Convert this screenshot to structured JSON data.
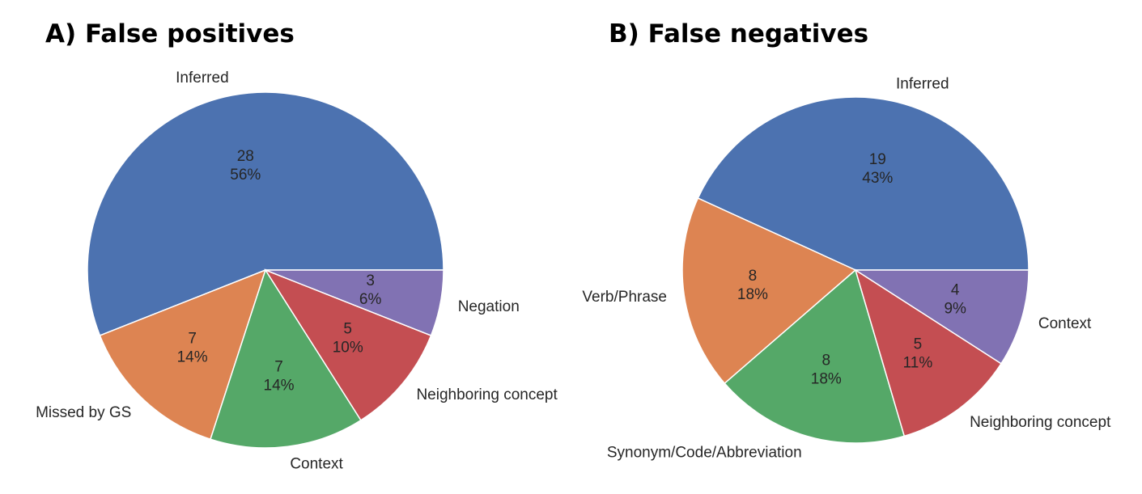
{
  "chart_data": [
    {
      "type": "pie",
      "title": "A) False positives",
      "slices": [
        {
          "label": "Inferred",
          "value": 28,
          "percent": "56%",
          "color": "#4c72b0"
        },
        {
          "label": "Missed by GS",
          "value": 7,
          "percent": "14%",
          "color": "#dd8452"
        },
        {
          "label": "Context",
          "value": 7,
          "percent": "14%",
          "color": "#55a868"
        },
        {
          "label": "Neighboring concept",
          "value": 5,
          "percent": "10%",
          "color": "#c44e52"
        },
        {
          "label": "Negation",
          "value": 3,
          "percent": "6%",
          "color": "#8172b3"
        }
      ]
    },
    {
      "type": "pie",
      "title": "B) False negatives",
      "slices": [
        {
          "label": "Inferred",
          "value": 19,
          "percent": "43%",
          "color": "#4c72b0"
        },
        {
          "label": "Verb/Phrase",
          "value": 8,
          "percent": "18%",
          "color": "#dd8452"
        },
        {
          "label": "Synonym/Code/Abbreviation",
          "value": 8,
          "percent": "18%",
          "color": "#55a868"
        },
        {
          "label": "Neighboring concept",
          "value": 5,
          "percent": "11%",
          "color": "#c44e52"
        },
        {
          "label": "Context",
          "value": 4,
          "percent": "9%",
          "color": "#8172b3"
        }
      ]
    }
  ]
}
